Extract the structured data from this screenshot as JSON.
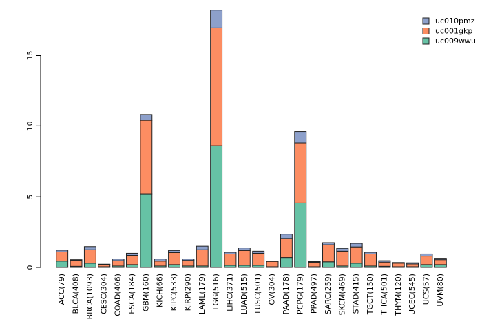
{
  "chart_data": {
    "type": "bar",
    "stacked": true,
    "title": "",
    "xlabel": "",
    "ylabel": "",
    "ylim": [
      0,
      18.5
    ],
    "yticks": [
      0,
      5,
      10,
      15
    ],
    "ytick_labels": [
      "0",
      "5",
      "10",
      "15"
    ],
    "legend_position": "top-right",
    "categories": [
      "ACC(79)",
      "BLCA(408)",
      "BRCA(1093)",
      "CESC(304)",
      "COAD(406)",
      "ESCA(184)",
      "GBM(160)",
      "KICH(66)",
      "KIPC(533)",
      "KIRP(290)",
      "LAML(179)",
      "LGG(516)",
      "LIHC(371)",
      "LUAD(515)",
      "LUSC(501)",
      "OV(304)",
      "PAAD(178)",
      "PCPG(179)",
      "PPAD(497)",
      "SARC(259)",
      "SKCM(469)",
      "STAD(415)",
      "TGCT(150)",
      "THCA(501)",
      "THYM(120)",
      "UCEC(545)",
      "UCS(57)",
      "UVM(80)"
    ],
    "series": [
      {
        "name": "uc009wwu",
        "color": "#66c2a5",
        "values": [
          0.45,
          0.08,
          0.3,
          0.05,
          0.1,
          0.2,
          5.2,
          0.1,
          0.2,
          0.1,
          0.1,
          8.6,
          0.15,
          0.15,
          0.15,
          0.05,
          0.7,
          4.55,
          0.05,
          0.4,
          0.1,
          0.3,
          0.1,
          0.08,
          0.05,
          0.05,
          0.2,
          0.2
        ]
      },
      {
        "name": "uc001gkp",
        "color": "#fc8d62",
        "values": [
          0.65,
          0.42,
          0.95,
          0.15,
          0.38,
          0.65,
          5.2,
          0.35,
          0.85,
          0.4,
          1.15,
          8.35,
          0.8,
          1.05,
          0.85,
          0.38,
          1.35,
          4.25,
          0.32,
          1.2,
          1.05,
          1.15,
          0.85,
          0.3,
          0.25,
          0.2,
          0.6,
          0.35
        ]
      },
      {
        "name": "uc010pmz",
        "color": "#8da0cb",
        "values": [
          0.12,
          0.05,
          0.22,
          0.03,
          0.12,
          0.15,
          0.4,
          0.15,
          0.15,
          0.1,
          0.25,
          1.25,
          0.12,
          0.18,
          0.15,
          0.02,
          0.3,
          0.8,
          0.05,
          0.15,
          0.2,
          0.25,
          0.12,
          0.1,
          0.05,
          0.08,
          0.15,
          0.1
        ]
      }
    ],
    "legend_order": [
      "uc010pmz",
      "uc001gkp",
      "uc009wwu"
    ]
  }
}
